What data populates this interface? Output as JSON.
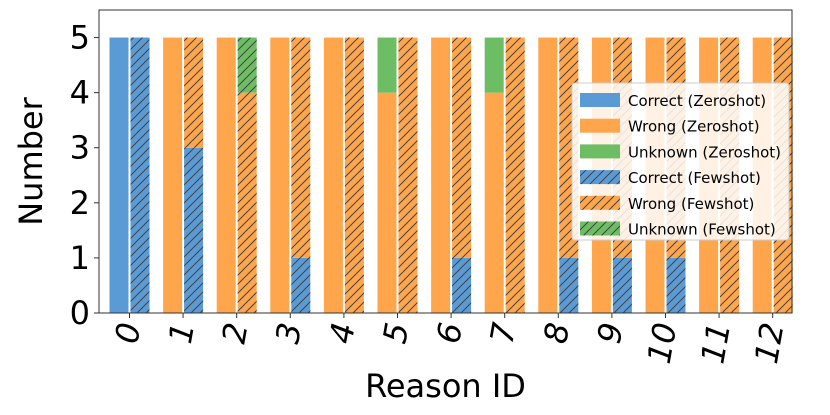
{
  "chart_data": {
    "type": "bar",
    "stacked": true,
    "grouped": true,
    "xlabel": "Reason ID",
    "ylabel": "Number",
    "ylim": [
      0,
      5.5
    ],
    "yticks": [
      0,
      1,
      2,
      3,
      4,
      5
    ],
    "categories": [
      "0",
      "1",
      "2",
      "3",
      "4",
      "5",
      "6",
      "7",
      "8",
      "9",
      "10",
      "11",
      "12"
    ],
    "groups": [
      {
        "name": "Zeroshot",
        "hatched": false,
        "series": [
          {
            "name": "Correct (Zeroshot)",
            "color": "#5b9bd5",
            "values": [
              5,
              0,
              0,
              0,
              0,
              0,
              0,
              0,
              0,
              0,
              0,
              0,
              0
            ]
          },
          {
            "name": "Wrong (Zeroshot)",
            "color": "#ffa64d",
            "values": [
              0,
              5,
              5,
              5,
              5,
              4,
              5,
              4,
              5,
              5,
              5,
              5,
              5
            ]
          },
          {
            "name": "Unknown (Zeroshot)",
            "color": "#6cbd63",
            "values": [
              0,
              0,
              0,
              0,
              0,
              1,
              0,
              1,
              0,
              0,
              0,
              0,
              0
            ]
          }
        ]
      },
      {
        "name": "Fewshot",
        "hatched": true,
        "series": [
          {
            "name": "Correct (Fewshot)",
            "color": "#5b9bd5",
            "values": [
              5,
              3,
              0,
              1,
              0,
              0,
              1,
              0,
              1,
              1,
              1,
              0,
              0
            ]
          },
          {
            "name": "Wrong (Fewshot)",
            "color": "#ffa64d",
            "values": [
              0,
              2,
              4,
              4,
              5,
              5,
              4,
              5,
              4,
              4,
              4,
              5,
              5
            ]
          },
          {
            "name": "Unknown (Fewshot)",
            "color": "#6cbd63",
            "values": [
              0,
              0,
              1,
              0,
              0,
              0,
              0,
              0,
              0,
              0,
              0,
              0,
              0
            ]
          }
        ]
      }
    ],
    "legend": {
      "placement": "right",
      "entries": [
        "Correct (Zeroshot)",
        "Wrong (Zeroshot)",
        "Unknown (Zeroshot)",
        "Correct (Fewshot)",
        "Wrong (Fewshot)",
        "Unknown (Fewshot)"
      ]
    },
    "grid": false
  }
}
